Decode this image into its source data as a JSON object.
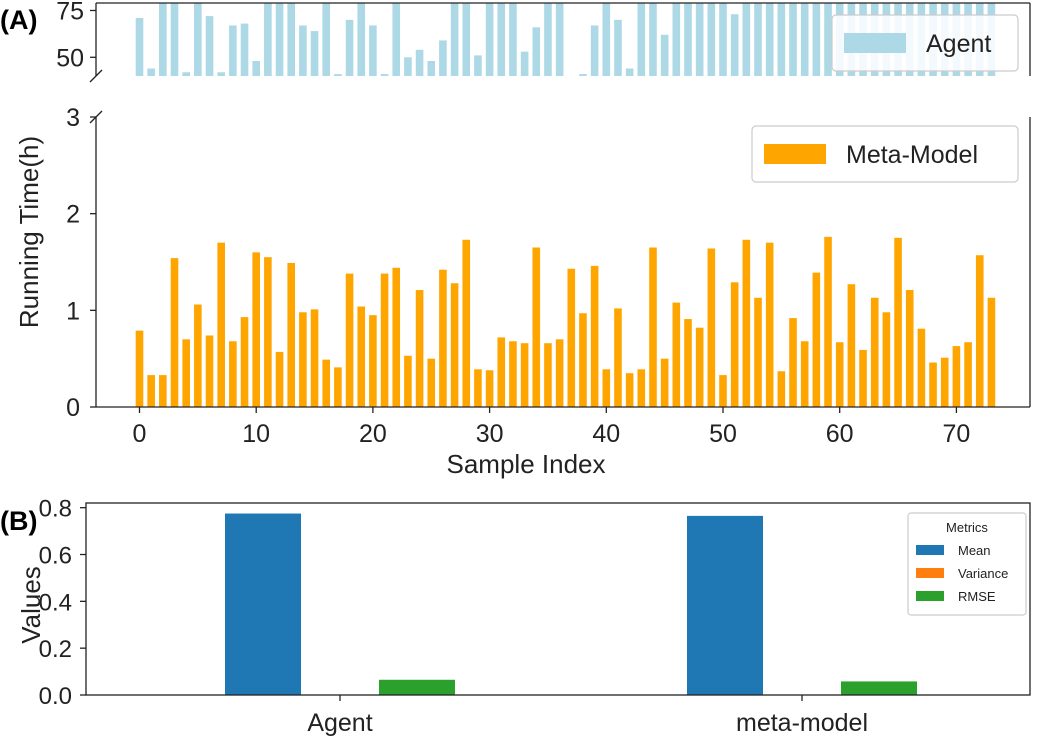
{
  "panel_labels": {
    "a": "(A)",
    "b": "(B)"
  },
  "colors": {
    "agent": "#add8e6",
    "meta_model": "#ffa500",
    "mean": "#1f77b4",
    "variance": "#ff7f0e",
    "rmse": "#2ca02c"
  },
  "chart_data": [
    {
      "type": "bar",
      "panel": "A",
      "xlabel": "Sample Index",
      "ylabel": "Running Time(h)",
      "x": [
        0,
        1,
        2,
        3,
        4,
        5,
        6,
        7,
        8,
        9,
        10,
        11,
        12,
        13,
        14,
        15,
        16,
        17,
        18,
        19,
        20,
        21,
        22,
        23,
        24,
        25,
        26,
        27,
        28,
        29,
        30,
        31,
        32,
        33,
        34,
        35,
        36,
        37,
        38,
        39,
        40,
        41,
        42,
        43,
        44,
        45,
        46,
        47,
        48,
        49,
        50,
        51,
        52,
        53,
        54,
        55,
        56,
        57,
        58,
        59,
        60,
        61,
        62,
        63,
        64,
        65,
        66,
        67,
        68,
        69,
        70,
        71,
        72,
        73
      ],
      "x_ticks": [
        0,
        10,
        20,
        30,
        40,
        50,
        60,
        70
      ],
      "x_tick_labels": [
        "0",
        "10",
        "20",
        "30",
        "40",
        "50",
        "60",
        "70"
      ],
      "broken_y_axis": true,
      "upper_axis": {
        "ylim": [
          40,
          79
        ],
        "y_ticks": [
          50,
          75
        ],
        "y_tick_labels": [
          "50",
          "75"
        ]
      },
      "lower_axis": {
        "ylim": [
          0,
          3
        ],
        "y_ticks": [
          0,
          1,
          2,
          3
        ],
        "y_tick_labels": [
          "0",
          "1",
          "2",
          "3"
        ]
      },
      "series": [
        {
          "name": "Agent",
          "values": [
            71,
            44,
            79,
            79,
            42,
            79,
            72,
            42,
            67,
            68,
            48,
            79,
            79,
            79,
            67,
            64,
            79,
            41,
            70,
            79,
            67,
            41,
            79,
            50,
            54,
            48,
            59,
            79,
            79,
            51,
            79,
            79,
            79,
            53,
            66,
            79,
            79,
            40,
            41,
            67,
            79,
            70,
            44,
            79,
            79,
            62,
            79,
            79,
            79,
            79,
            79,
            73,
            79,
            79,
            79,
            79,
            79,
            79,
            79,
            79,
            79,
            79,
            79,
            79,
            79,
            79,
            79,
            79,
            79,
            79,
            79,
            79,
            79,
            79
          ]
        },
        {
          "name": "Meta-Model",
          "values": [
            0.79,
            0.33,
            0.33,
            1.54,
            0.7,
            1.06,
            0.74,
            1.7,
            0.68,
            0.93,
            1.6,
            1.55,
            0.57,
            1.49,
            0.98,
            1.01,
            0.49,
            0.41,
            1.38,
            1.04,
            0.95,
            1.38,
            1.44,
            0.53,
            1.21,
            0.5,
            1.42,
            1.28,
            1.73,
            0.39,
            0.38,
            0.72,
            0.68,
            0.66,
            1.65,
            0.66,
            0.7,
            1.43,
            0.97,
            1.46,
            0.39,
            1.02,
            0.35,
            0.39,
            1.65,
            0.5,
            1.08,
            0.91,
            0.82,
            1.64,
            0.33,
            1.29,
            1.73,
            1.13,
            1.7,
            0.37,
            0.92,
            0.68,
            1.39,
            1.76,
            0.67,
            1.27,
            0.59,
            1.13,
            0.98,
            1.75,
            1.21,
            0.81,
            0.46,
            0.51,
            0.63,
            0.67,
            1.57,
            1.13
          ]
        }
      ],
      "legend_upper": "Agent",
      "legend_lower": "Meta-Model",
      "legend_position": "top-right"
    },
    {
      "type": "bar",
      "panel": "B",
      "ylabel": "Values",
      "categories": [
        "Agent",
        "meta-model"
      ],
      "ylim": [
        0,
        0.82
      ],
      "y_ticks": [
        0.0,
        0.2,
        0.4,
        0.6,
        0.8
      ],
      "y_tick_labels": [
        "0.0",
        "0.2",
        "0.4",
        "0.6",
        "0.8"
      ],
      "legend_title": "Metrics",
      "legend_position": "top-right",
      "series": [
        {
          "name": "Mean",
          "values": [
            0.775,
            0.765
          ]
        },
        {
          "name": "Variance",
          "values": [
            0.0,
            0.0
          ]
        },
        {
          "name": "RMSE",
          "values": [
            0.065,
            0.058
          ]
        }
      ]
    }
  ]
}
